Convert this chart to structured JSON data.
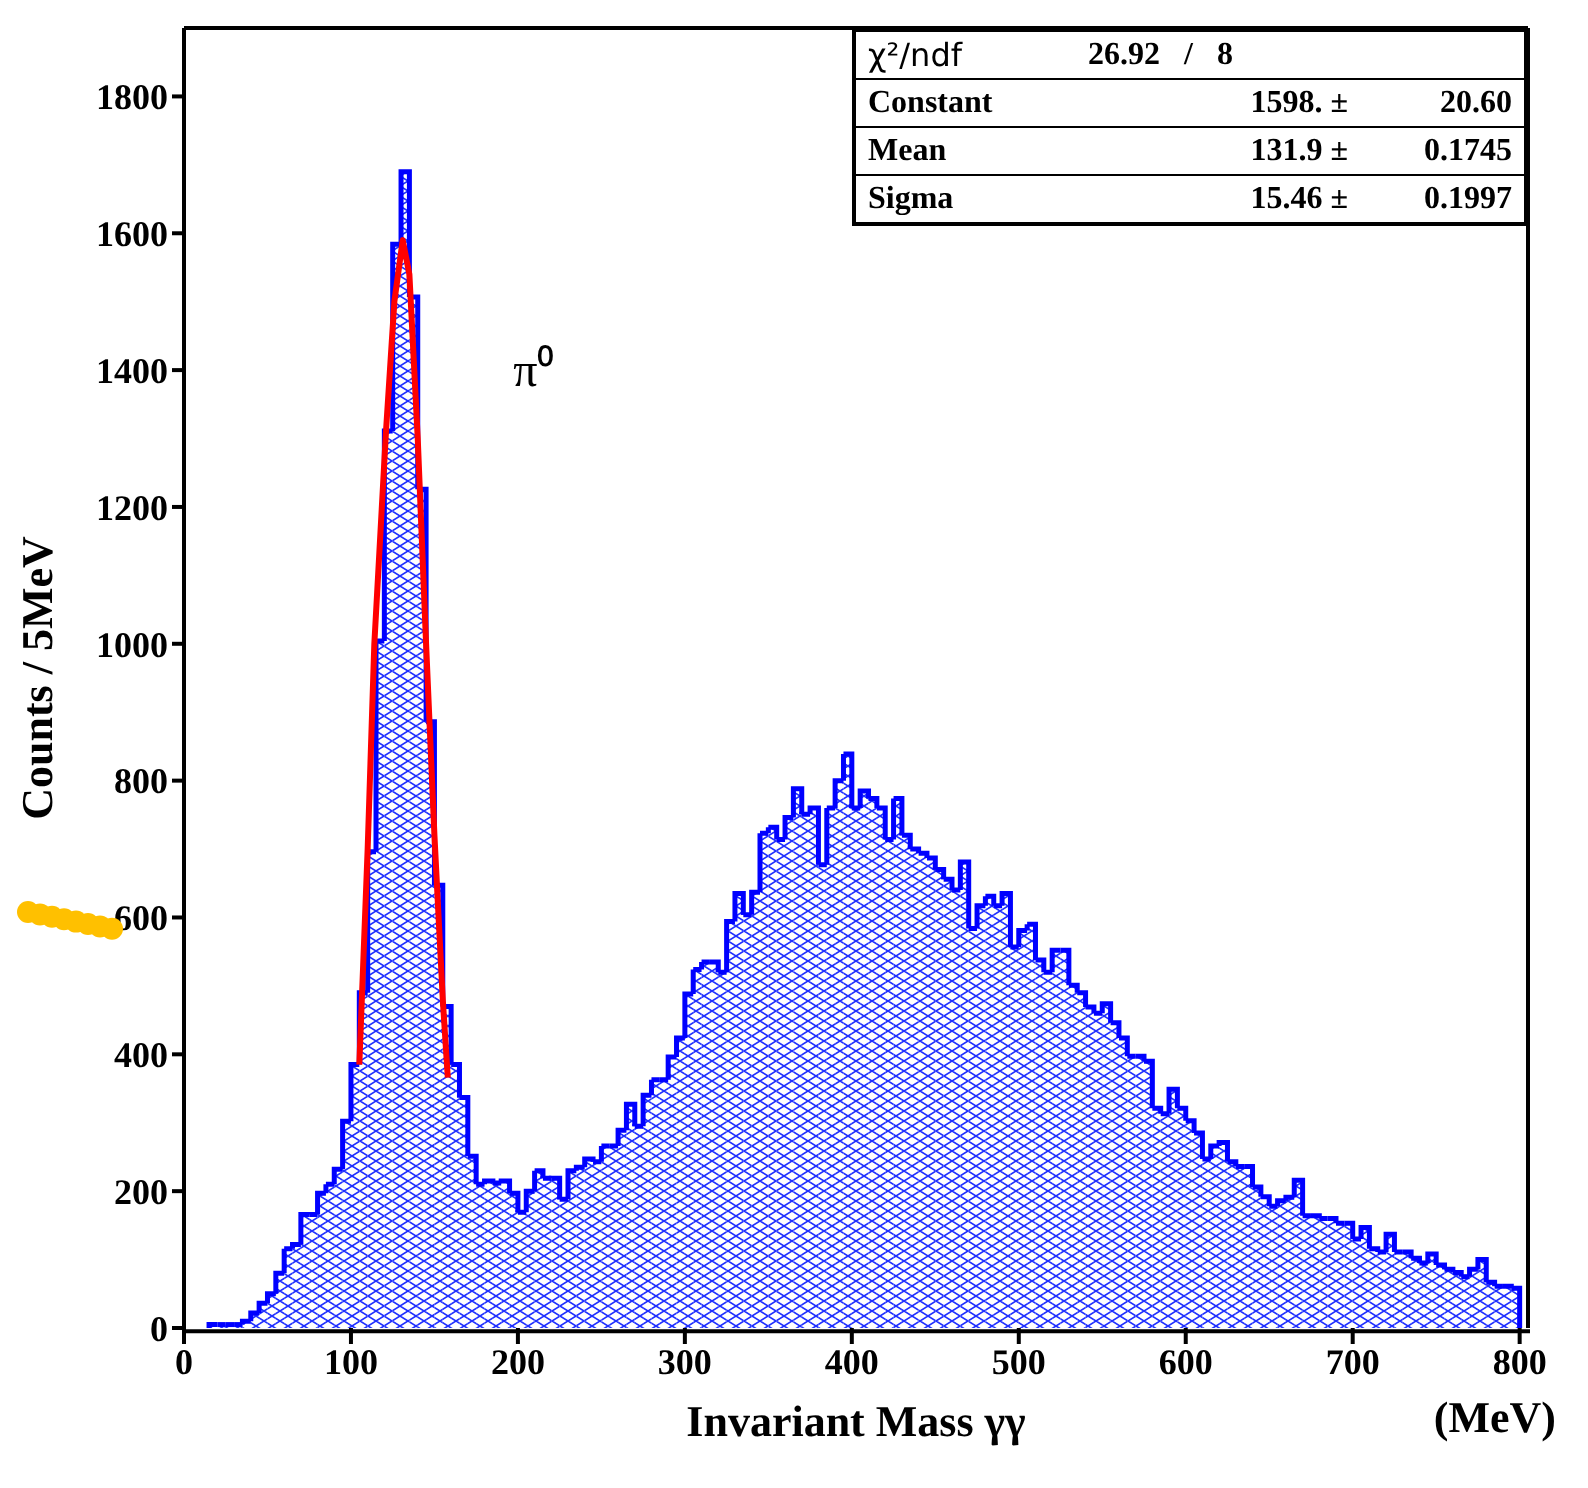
{
  "chart_data": {
    "type": "histogram",
    "xlabel": "Invariant Mass γγ",
    "ylabel": "Counts / 5MeV",
    "annotations": [
      "π⁰",
      "(MeV)",
      "χ²/ndf",
      "26.92   /   8",
      "Constant",
      "1598. ±",
      "20.60",
      "Mean",
      "131.9 ±",
      "0.1745",
      "Sigma",
      "15.46 ±",
      "0.1997"
    ],
    "bins": [
      0,
      5,
      10,
      15,
      20,
      25,
      30,
      35,
      40,
      45,
      50,
      55,
      60,
      65,
      70,
      75,
      80,
      85,
      90,
      95,
      100,
      105,
      110,
      115,
      120,
      125,
      130,
      135,
      140,
      145,
      150,
      155,
      160,
      165,
      170,
      175,
      180,
      185,
      190,
      195,
      200,
      205,
      210,
      215,
      220,
      225,
      230,
      235,
      240,
      245,
      250,
      255,
      260,
      265,
      270,
      275,
      280,
      285,
      290,
      295,
      300,
      305,
      310,
      315,
      320,
      325,
      330,
      335,
      340,
      345,
      350,
      355,
      360,
      365,
      370,
      375,
      380,
      385,
      390,
      395,
      400,
      405,
      410,
      415,
      420,
      425,
      430,
      435,
      440,
      445,
      450,
      455,
      460,
      465,
      470,
      475,
      480,
      485,
      490,
      495,
      500,
      505,
      510,
      515,
      520,
      525,
      530,
      535,
      540,
      545,
      550,
      555,
      560,
      565,
      570,
      575,
      580,
      585,
      590,
      595,
      600,
      605,
      610,
      615,
      620,
      625,
      630,
      635,
      640,
      645,
      650,
      655,
      660,
      665,
      670,
      675,
      680,
      685,
      690,
      695,
      700,
      705,
      710,
      715,
      720,
      725,
      730,
      735,
      740,
      745,
      750,
      755,
      760,
      765,
      770,
      775,
      780,
      785,
      790,
      795,
      800
    ],
    "series": [
      {
        "color": "#0000ff",
        "values": [
          0,
          0,
          0,
          5,
          5,
          5,
          5,
          10,
          22,
          36,
          50,
          80,
          116,
          122,
          166,
          166,
          197,
          210,
          232,
          302,
          385,
          490,
          696,
          1004,
          1311,
          1584,
          1690,
          1507,
          1226,
          886,
          647,
          470,
          385,
          337,
          251,
          210,
          215,
          212,
          215,
          197,
          169,
          200,
          230,
          219,
          219,
          188,
          230,
          235,
          247,
          243,
          266,
          266,
          289,
          327,
          295,
          340,
          363,
          363,
          396,
          424,
          488,
          524,
          535,
          535,
          520,
          594,
          635,
          604,
          637,
          723,
          732,
          714,
          746,
          788,
          751,
          760,
          677,
          760,
          800,
          839,
          760,
          785,
          774,
          760,
          714,
          774,
          720,
          700,
          694,
          687,
          670,
          656,
          640,
          681,
          584,
          617,
          631,
          617,
          635,
          557,
          581,
          590,
          538,
          520,
          552,
          552,
          501,
          490,
          469,
          460,
          474,
          446,
          424,
          397,
          397,
          390,
          321,
          313,
          349,
          321,
          303,
          285,
          247,
          266,
          271,
          243,
          236,
          236,
          206,
          192,
          178,
          186,
          191,
          216,
          164,
          164,
          160,
          160,
          153,
          153,
          130,
          147,
          116,
          111,
          137,
          111,
          111,
          102,
          95,
          108,
          92,
          86,
          81,
          75,
          86,
          100,
          67,
          61,
          61,
          58
        ]
      },
      {
        "type": "line",
        "color": "#ff0000",
        "x": [
          105,
          110,
          114,
          121,
          126,
          131,
          135,
          140,
          145,
          150,
          155,
          158
        ],
        "values": [
          385,
          700,
          1000,
          1311,
          1500,
          1590,
          1540,
          1300,
          1000,
          720,
          480,
          366
        ]
      }
    ],
    "xlim": [
      0,
      805
    ],
    "xticks": [
      0,
      100,
      200,
      300,
      400,
      500,
      600,
      700,
      800
    ],
    "ylim": [
      0,
      1900
    ],
    "yticks": [
      0,
      200,
      400,
      600,
      800,
      1000,
      1200,
      1400,
      1600,
      1800
    ]
  }
}
